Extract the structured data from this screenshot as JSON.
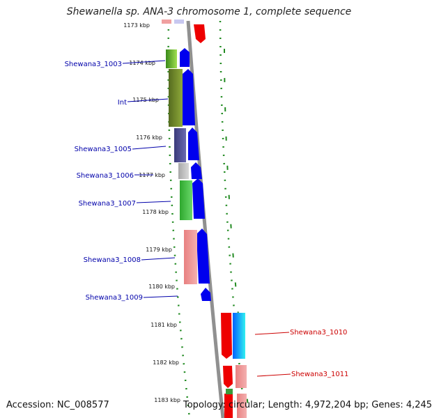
{
  "header": {
    "title": "Shewanella sp. ANA-3 chromosome 1, complete sequence"
  },
  "footer": {
    "accession": "Accession: NC_008577",
    "summary": "Topology: circular; Length: 4,972,204 bp; Genes: 4,245"
  },
  "ruler": {
    "ticks": [
      "1173 kbp",
      "1174 kbp",
      "1175 kbp",
      "1176 kbp",
      "1177 kbp",
      "1178 kbp",
      "1179 kbp",
      "1180 kbp",
      "1181 kbp",
      "1182 kbp",
      "1183 kbp"
    ]
  },
  "gene_labels": {
    "left": [
      "Shewana3_1003",
      "Int",
      "Shewana3_1005",
      "Shewana3_1006",
      "Shewana3_1007",
      "Shewana3_1008",
      "Shewana3_1009"
    ],
    "right": [
      "Shewana3_1010",
      "Shewana3_1011"
    ]
  },
  "colors": {
    "forward_cds": "#0000ee",
    "reverse_cds": "#ee0000",
    "left_label": "#0000aa",
    "right_label": "#cc0000",
    "backbone": "#909090",
    "dots": "#228b22"
  }
}
